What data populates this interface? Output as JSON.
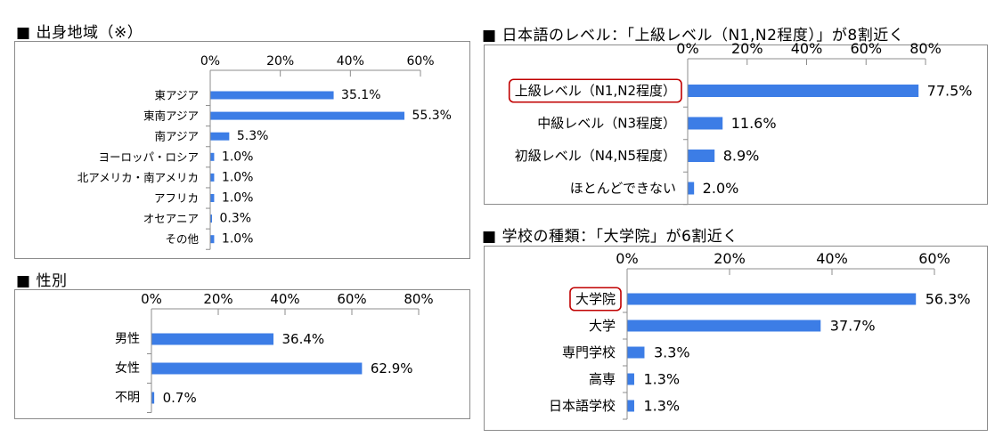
{
  "accent": "#3c7de6",
  "highlight": "#c00000",
  "panels": {
    "origin": {
      "title": "■ 出身地域（※）"
    },
    "gender": {
      "title": "■ 性別"
    },
    "japanese": {
      "title": "■ 日本語のレベル：「上級レベル（N1,N2程度）」が8割近く"
    },
    "school": {
      "title": "■ 学校の種類：「大学院」が6割近く"
    }
  },
  "chart_data": [
    {
      "id": "origin",
      "type": "bar",
      "orientation": "horizontal",
      "categories": [
        "東アジア",
        "東南アジア",
        "南アジア",
        "ヨーロッパ・ロシア",
        "北アメリカ・南アメリカ",
        "アフリカ",
        "オセアニア",
        "その他"
      ],
      "values": [
        35.1,
        55.3,
        5.3,
        1.0,
        1.0,
        1.0,
        0.3,
        1.0
      ],
      "value_labels": [
        "35.1%",
        "55.3%",
        "5.3%",
        "1.0%",
        "1.0%",
        "1.0%",
        "0.3%",
        "1.0%"
      ],
      "ticks": [
        "0%",
        "20%",
        "40%",
        "60%"
      ],
      "xlim": [
        0,
        60
      ],
      "axis_position": "top"
    },
    {
      "id": "gender",
      "type": "bar",
      "orientation": "horizontal",
      "categories": [
        "男性",
        "女性",
        "不明"
      ],
      "values": [
        36.4,
        62.9,
        0.7
      ],
      "value_labels": [
        "36.4%",
        "62.9%",
        "0.7%"
      ],
      "ticks": [
        "0%",
        "20%",
        "40%",
        "60%",
        "80%"
      ],
      "xlim": [
        0,
        80
      ],
      "axis_position": "top"
    },
    {
      "id": "japanese",
      "type": "bar",
      "orientation": "horizontal",
      "categories": [
        "上級レベル（N1,N2程度）",
        "中級レベル（N3程度）",
        "初級レベル（N4,N5程度）",
        "ほとんどできない"
      ],
      "values": [
        77.5,
        11.6,
        8.9,
        2.0
      ],
      "value_labels": [
        "77.5%",
        "11.6%",
        "8.9%",
        "2.0%"
      ],
      "ticks": [
        "0%",
        "20%",
        "40%",
        "60%",
        "80%"
      ],
      "xlim": [
        0,
        80
      ],
      "axis_position": "top",
      "highlighted_category": "上級レベル（N1,N2程度）"
    },
    {
      "id": "school",
      "type": "bar",
      "orientation": "horizontal",
      "categories": [
        "大学院",
        "大学",
        "専門学校",
        "高専",
        "日本語学校"
      ],
      "values": [
        56.3,
        37.7,
        3.3,
        1.3,
        1.3
      ],
      "value_labels": [
        "56.3%",
        "37.7%",
        "3.3%",
        "1.3%",
        "1.3%"
      ],
      "ticks": [
        "0%",
        "20%",
        "40%",
        "60%"
      ],
      "xlim": [
        0,
        60
      ],
      "axis_position": "top",
      "highlighted_category": "大学院"
    }
  ]
}
